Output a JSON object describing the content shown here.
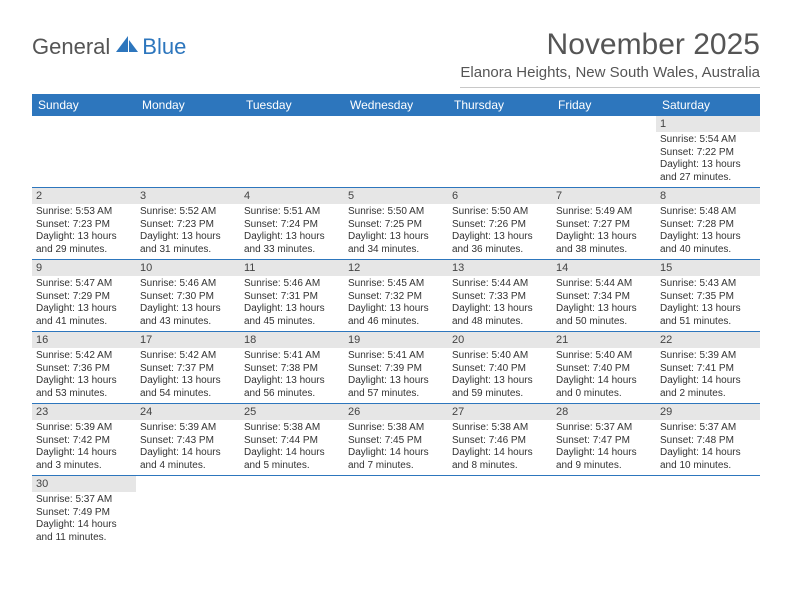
{
  "logo": {
    "text1": "General",
    "text2": "Blue"
  },
  "title": "November 2025",
  "location": "Elanora Heights, New South Wales, Australia",
  "colors": {
    "header_bg": "#2d76bd",
    "daynum_bg": "#e6e6e6",
    "text": "#333333",
    "title_text": "#555555",
    "page_bg": "#ffffff"
  },
  "typography": {
    "title_fontsize": 30,
    "location_fontsize": 15,
    "dow_fontsize": 12,
    "cell_fontsize": 10
  },
  "dow": [
    "Sunday",
    "Monday",
    "Tuesday",
    "Wednesday",
    "Thursday",
    "Friday",
    "Saturday"
  ],
  "weeks": [
    [
      null,
      null,
      null,
      null,
      null,
      null,
      {
        "n": "1",
        "sr": "5:54 AM",
        "ss": "7:22 PM",
        "dh": "13",
        "dm": "27"
      }
    ],
    [
      {
        "n": "2",
        "sr": "5:53 AM",
        "ss": "7:23 PM",
        "dh": "13",
        "dm": "29"
      },
      {
        "n": "3",
        "sr": "5:52 AM",
        "ss": "7:23 PM",
        "dh": "13",
        "dm": "31"
      },
      {
        "n": "4",
        "sr": "5:51 AM",
        "ss": "7:24 PM",
        "dh": "13",
        "dm": "33"
      },
      {
        "n": "5",
        "sr": "5:50 AM",
        "ss": "7:25 PM",
        "dh": "13",
        "dm": "34"
      },
      {
        "n": "6",
        "sr": "5:50 AM",
        "ss": "7:26 PM",
        "dh": "13",
        "dm": "36"
      },
      {
        "n": "7",
        "sr": "5:49 AM",
        "ss": "7:27 PM",
        "dh": "13",
        "dm": "38"
      },
      {
        "n": "8",
        "sr": "5:48 AM",
        "ss": "7:28 PM",
        "dh": "13",
        "dm": "40"
      }
    ],
    [
      {
        "n": "9",
        "sr": "5:47 AM",
        "ss": "7:29 PM",
        "dh": "13",
        "dm": "41"
      },
      {
        "n": "10",
        "sr": "5:46 AM",
        "ss": "7:30 PM",
        "dh": "13",
        "dm": "43"
      },
      {
        "n": "11",
        "sr": "5:46 AM",
        "ss": "7:31 PM",
        "dh": "13",
        "dm": "45"
      },
      {
        "n": "12",
        "sr": "5:45 AM",
        "ss": "7:32 PM",
        "dh": "13",
        "dm": "46"
      },
      {
        "n": "13",
        "sr": "5:44 AM",
        "ss": "7:33 PM",
        "dh": "13",
        "dm": "48"
      },
      {
        "n": "14",
        "sr": "5:44 AM",
        "ss": "7:34 PM",
        "dh": "13",
        "dm": "50"
      },
      {
        "n": "15",
        "sr": "5:43 AM",
        "ss": "7:35 PM",
        "dh": "13",
        "dm": "51"
      }
    ],
    [
      {
        "n": "16",
        "sr": "5:42 AM",
        "ss": "7:36 PM",
        "dh": "13",
        "dm": "53"
      },
      {
        "n": "17",
        "sr": "5:42 AM",
        "ss": "7:37 PM",
        "dh": "13",
        "dm": "54"
      },
      {
        "n": "18",
        "sr": "5:41 AM",
        "ss": "7:38 PM",
        "dh": "13",
        "dm": "56"
      },
      {
        "n": "19",
        "sr": "5:41 AM",
        "ss": "7:39 PM",
        "dh": "13",
        "dm": "57"
      },
      {
        "n": "20",
        "sr": "5:40 AM",
        "ss": "7:40 PM",
        "dh": "13",
        "dm": "59"
      },
      {
        "n": "21",
        "sr": "5:40 AM",
        "ss": "7:40 PM",
        "dh": "14",
        "dm": "0"
      },
      {
        "n": "22",
        "sr": "5:39 AM",
        "ss": "7:41 PM",
        "dh": "14",
        "dm": "2"
      }
    ],
    [
      {
        "n": "23",
        "sr": "5:39 AM",
        "ss": "7:42 PM",
        "dh": "14",
        "dm": "3"
      },
      {
        "n": "24",
        "sr": "5:39 AM",
        "ss": "7:43 PM",
        "dh": "14",
        "dm": "4"
      },
      {
        "n": "25",
        "sr": "5:38 AM",
        "ss": "7:44 PM",
        "dh": "14",
        "dm": "5"
      },
      {
        "n": "26",
        "sr": "5:38 AM",
        "ss": "7:45 PM",
        "dh": "14",
        "dm": "7"
      },
      {
        "n": "27",
        "sr": "5:38 AM",
        "ss": "7:46 PM",
        "dh": "14",
        "dm": "8"
      },
      {
        "n": "28",
        "sr": "5:37 AM",
        "ss": "7:47 PM",
        "dh": "14",
        "dm": "9"
      },
      {
        "n": "29",
        "sr": "5:37 AM",
        "ss": "7:48 PM",
        "dh": "14",
        "dm": "10"
      }
    ],
    [
      {
        "n": "30",
        "sr": "5:37 AM",
        "ss": "7:49 PM",
        "dh": "14",
        "dm": "11"
      },
      null,
      null,
      null,
      null,
      null,
      null
    ]
  ],
  "labels": {
    "sunrise": "Sunrise:",
    "sunset": "Sunset:",
    "daylight": "Daylight:",
    "hours_word": "hours",
    "and_word": "and",
    "minutes_word": "minutes."
  }
}
